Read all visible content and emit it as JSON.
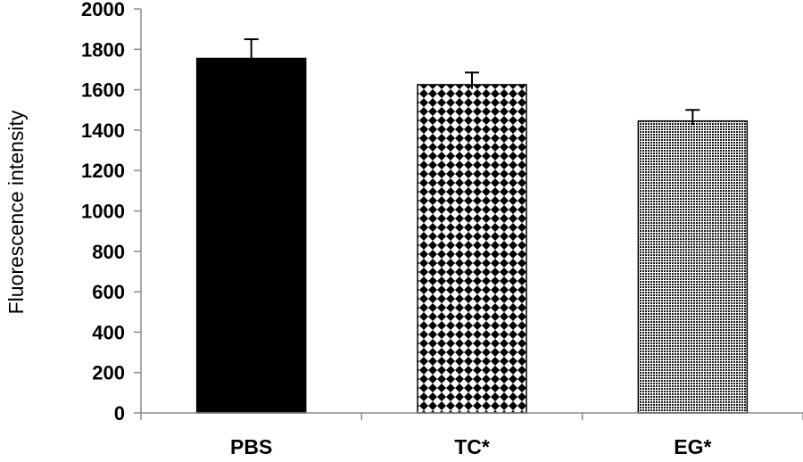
{
  "chart_data": {
    "type": "bar",
    "categories": [
      "PBS",
      "TC*",
      "EG*"
    ],
    "values": [
      1755,
      1625,
      1445
    ],
    "errors": [
      95,
      60,
      55
    ],
    "title": "",
    "xlabel": "",
    "ylabel": "Fluorescence intensity",
    "ylim": [
      0,
      2000
    ],
    "yticks": [
      0,
      200,
      400,
      600,
      800,
      1000,
      1200,
      1400,
      1600,
      1800,
      2000
    ],
    "fills": [
      "solid-black",
      "diamond-checker",
      "fine-dot"
    ],
    "grid": false,
    "legend": "none"
  }
}
